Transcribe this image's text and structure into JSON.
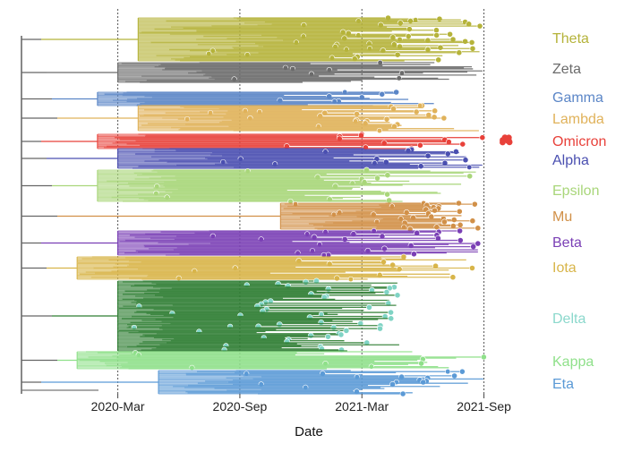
{
  "chart_data": {
    "type": "phylogenetic-tree",
    "xlabel": "Date",
    "x_ticks": [
      "2020-Mar",
      "2020-Sep",
      "2021-Mar",
      "2021-Sep"
    ],
    "x_range": [
      "2019-10",
      "2021-11"
    ],
    "grid": "vertical dashed lines at tick dates",
    "legend_placement": "right",
    "clades": [
      {
        "name": "Theta",
        "color": "#b5b33a",
        "first": "2020-Apr",
        "last": "2021-Sep"
      },
      {
        "name": "Zeta",
        "color": "#6b6b6b",
        "first": "2020-Mar",
        "last": "2021-Sep"
      },
      {
        "name": "Gamma",
        "color": "#5b86c7",
        "first": "2020-Feb",
        "last": "2021-Aug"
      },
      {
        "name": "Lambda",
        "color": "#e0b25a",
        "first": "2020-Apr",
        "last": "2021-Sep"
      },
      {
        "name": "Omicron",
        "color": "#e8413a",
        "first": "2020-Feb",
        "last": "2021-Oct"
      },
      {
        "name": "Alpha",
        "color": "#4a4fb0",
        "first": "2020-Mar",
        "last": "2021-Sep"
      },
      {
        "name": "Epsilon",
        "color": "#a9d67a",
        "first": "2020-Feb",
        "last": "2021-Sep"
      },
      {
        "name": "Mu",
        "color": "#d19048",
        "first": "2020-Nov",
        "last": "2021-Sep"
      },
      {
        "name": "Beta",
        "color": "#7a3fb5",
        "first": "2020-Mar",
        "last": "2021-Sep"
      },
      {
        "name": "Iota",
        "color": "#d8b54a",
        "first": "2020-Jan",
        "last": "2021-Sep"
      },
      {
        "name": "Delta",
        "color": "#2e7d32",
        "tip_color": "#7fd3c4",
        "label_color": "#8bd8cc",
        "first": "2020-Mar",
        "last": "2021-May"
      },
      {
        "name": "Kappa",
        "color": "#8fe08a",
        "first": "2020-Jan",
        "last": "2021-Sep"
      },
      {
        "name": "Eta",
        "color": "#5b9ad6",
        "first": "2020-May",
        "last": "2021-Sep"
      }
    ]
  }
}
